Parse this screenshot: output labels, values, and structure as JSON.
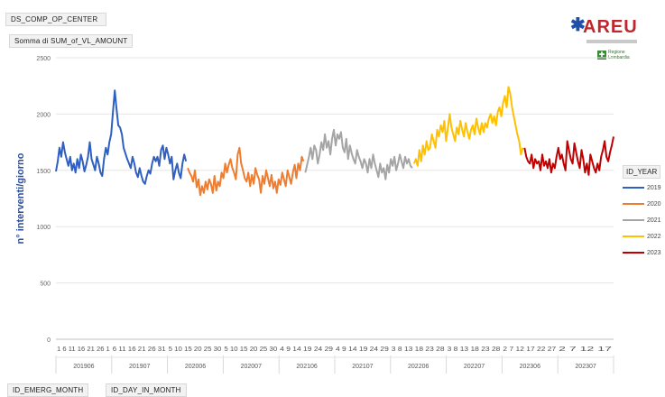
{
  "header": {
    "filter_center": "DS_COMP_OP_CENTER",
    "measure": "Somma di SUM_of_VL_AMOUNT"
  },
  "logo": {
    "text": "AREU",
    "partner": "Regione Lombardia"
  },
  "footer": {
    "field_month": "ID_EMERG_MONTH",
    "field_day": "ID_DAY_IN_MONTH"
  },
  "colors": {
    "2019": "#2f5fc0",
    "2020": "#ed7d31",
    "2021": "#a5a5a5",
    "2022": "#ffc000",
    "2023": "#c00000"
  },
  "chart_data": {
    "type": "line",
    "ylabel": "n° interventi/giorno",
    "ylim": [
      0,
      2500
    ],
    "yticks": [
      0,
      500,
      1000,
      1500,
      2000,
      2500
    ],
    "grid": true,
    "legend_title": "ID_YEAR",
    "legend_position": "right",
    "month_groups": [
      "201906",
      "201907",
      "202006",
      "202007",
      "202106",
      "202107",
      "202206",
      "202207",
      "202306",
      "202307"
    ],
    "day_tick_labels": [
      "1 6 11 16 21 26 1",
      "6 11 16 21 26 31",
      "5 10 15 20 25 30",
      "5 10 15 20 25 30",
      "4 9 14 19 24 29",
      "4 9 14 19 24 29",
      "3 8 13 18 23 28",
      "3 8 13 18 23 28",
      "2 7 12 17 22 27",
      "2 7 12 17"
    ],
    "series": [
      {
        "name": "2019",
        "values": [
          1490,
          1580,
          1700,
          1620,
          1750,
          1660,
          1600,
          1540,
          1620,
          1500,
          1560,
          1480,
          1600,
          1520,
          1640,
          1580,
          1490,
          1550,
          1620,
          1750,
          1600,
          1550,
          1500,
          1620,
          1560,
          1480,
          1450,
          1600,
          1700,
          1640,
          1750,
          1820,
          2020,
          2210,
          2050,
          1900,
          1880,
          1820,
          1700,
          1650,
          1600,
          1560,
          1520,
          1620,
          1560,
          1480,
          1440,
          1520,
          1450,
          1400,
          1380,
          1450,
          1500,
          1470,
          1560,
          1620,
          1580,
          1620,
          1540,
          1680,
          1720,
          1600,
          1700,
          1640,
          1560,
          1620,
          1420,
          1500,
          1560,
          1480,
          1430,
          1560,
          1640,
          1580
        ]
      },
      {
        "name": "2020",
        "values": [
          1520,
          1480,
          1450,
          1400,
          1500,
          1350,
          1420,
          1280,
          1360,
          1300,
          1400,
          1330,
          1420,
          1380,
          1300,
          1450,
          1320,
          1400,
          1360,
          1480,
          1430,
          1560,
          1480,
          1550,
          1600,
          1520,
          1480,
          1420,
          1640,
          1700,
          1560,
          1500,
          1430,
          1400,
          1480,
          1360,
          1460,
          1380,
          1520,
          1460,
          1420,
          1300,
          1450,
          1380,
          1500,
          1430,
          1360,
          1460,
          1340,
          1400,
          1300,
          1420,
          1370,
          1480,
          1420,
          1360,
          1500,
          1440,
          1380,
          1480,
          1550,
          1430,
          1560,
          1500,
          1620,
          1580
        ]
      },
      {
        "name": "2021",
        "values": [
          1480,
          1550,
          1620,
          1700,
          1600,
          1720,
          1680,
          1560,
          1640,
          1750,
          1680,
          1820,
          1700,
          1760,
          1640,
          1780,
          1860,
          1720,
          1820,
          1780,
          1840,
          1700,
          1660,
          1780,
          1600,
          1720,
          1650,
          1600,
          1560,
          1680,
          1620,
          1580,
          1520,
          1600,
          1560,
          1480,
          1600,
          1520,
          1640,
          1560,
          1500,
          1440,
          1560,
          1480,
          1520,
          1420,
          1550,
          1480,
          1600,
          1540,
          1620,
          1500,
          1560,
          1640,
          1580,
          1520,
          1620,
          1560,
          1600,
          1540,
          1520
        ]
      },
      {
        "name": "2022",
        "values": [
          1560,
          1600,
          1540,
          1680,
          1580,
          1720,
          1640,
          1760,
          1680,
          1700,
          1820,
          1760,
          1700,
          1860,
          1800,
          1900,
          1840,
          1940,
          1760,
          1880,
          2000,
          1880,
          1820,
          1760,
          1880,
          1820,
          1940,
          1860,
          1800,
          1920,
          1840,
          1780,
          1860,
          1900,
          1820,
          1960,
          1880,
          1820,
          1920,
          1840,
          1920,
          1880,
          1960,
          2000,
          1920,
          1980,
          1900,
          2020,
          2060,
          1980,
          2100,
          2160,
          2060,
          2240,
          2180,
          2060,
          1980,
          1900,
          1820,
          1760,
          1640,
          1700
        ]
      },
      {
        "name": "2023",
        "values": [
          1700,
          1620,
          1580,
          1560,
          1640,
          1520,
          1600,
          1560,
          1580,
          1500,
          1640,
          1540,
          1580,
          1520,
          1600,
          1480,
          1560,
          1520,
          1620,
          1700,
          1600,
          1640,
          1560,
          1500,
          1760,
          1680,
          1600,
          1560,
          1740,
          1660,
          1580,
          1520,
          1680,
          1600,
          1480,
          1560,
          1460,
          1640,
          1580,
          1520,
          1480,
          1560,
          1500,
          1620,
          1680,
          1760,
          1620,
          1580,
          1660,
          1720,
          1800
        ]
      }
    ]
  }
}
